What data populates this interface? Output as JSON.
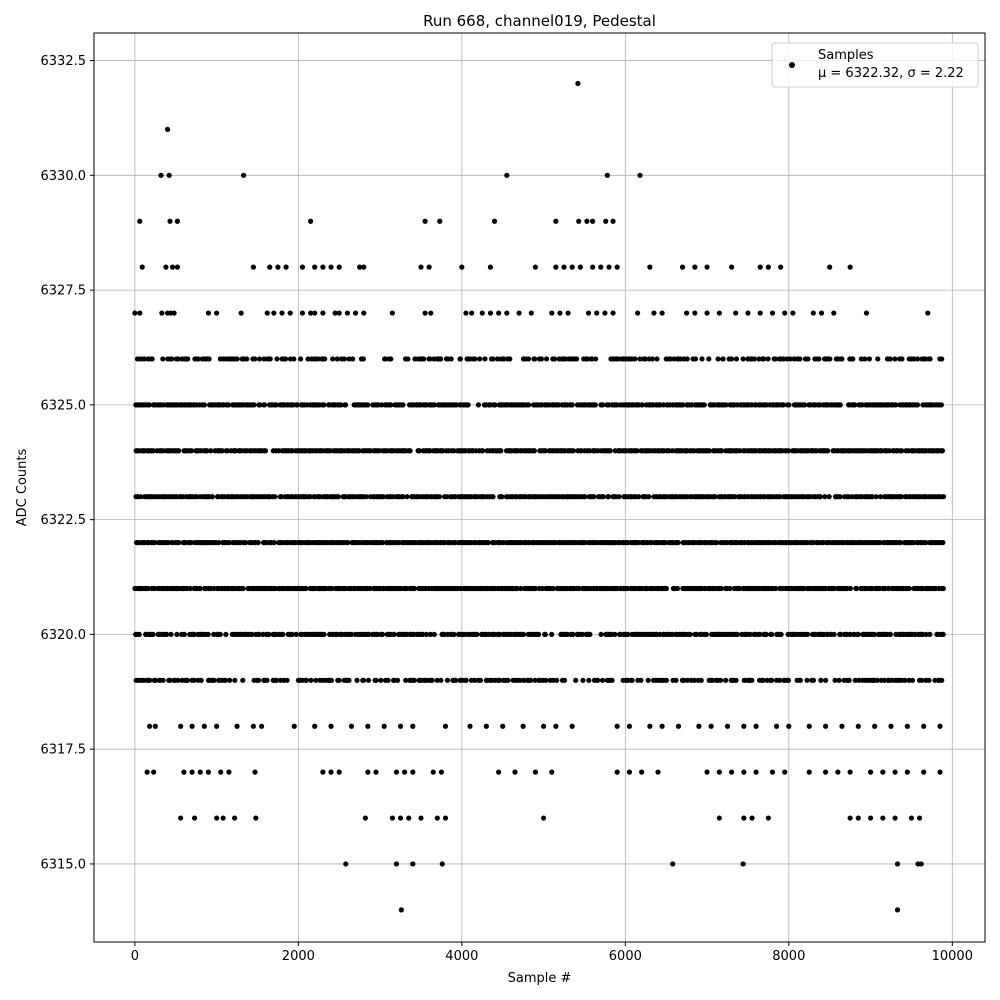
{
  "chart_data": {
    "type": "scatter",
    "title": "Run 668, channel019, Pedestal",
    "xlabel": "Sample #",
    "ylabel": "ADC Counts",
    "xlim": [
      -500,
      10400
    ],
    "ylim": [
      6313.3,
      6333.1
    ],
    "xticks": [
      0,
      2000,
      4000,
      6000,
      8000,
      10000
    ],
    "xtick_labels": [
      "0",
      "2000",
      "4000",
      "6000",
      "8000",
      "10000"
    ],
    "yticks": [
      6315.0,
      6317.5,
      6320.0,
      6322.5,
      6325.0,
      6327.5,
      6330.0,
      6332.5
    ],
    "ytick_labels": [
      "6315.0",
      "6317.5",
      "6320.0",
      "6322.5",
      "6325.0",
      "6327.5",
      "6330.0",
      "6332.5"
    ],
    "grid": true,
    "legend": {
      "position": "top-right",
      "label": "Samples",
      "stats_line": "μ = 6322.32, σ = 2.22"
    },
    "marker_color": "#000000",
    "series": [
      {
        "name": "Samples",
        "band_rows": [
          {
            "y": 6326,
            "density": 0.55,
            "gaps": [
              [
                3180,
                3260
              ],
              [
                4700,
                4740
              ],
              [
                6400,
                6480
              ],
              [
                9100,
                9160
              ]
            ]
          },
          {
            "y": 6325,
            "density": 0.8,
            "gaps": [
              [
                3300,
                3340
              ]
            ]
          },
          {
            "y": 6324,
            "density": 0.85,
            "gaps": [
              [
                3380,
                3460
              ]
            ]
          },
          {
            "y": 6323,
            "density": 0.9,
            "gaps": []
          },
          {
            "y": 6322,
            "density": 0.95,
            "gaps": []
          },
          {
            "y": 6321,
            "density": 0.9,
            "gaps": []
          },
          {
            "y": 6320,
            "density": 0.8,
            "gaps": [
              [
                5100,
                5200
              ],
              [
                5600,
                5700
              ]
            ]
          },
          {
            "y": 6319,
            "density": 0.55,
            "gaps": []
          }
        ],
        "sparse_points": [
          [
            0,
            6327
          ],
          [
            60,
            6327
          ],
          [
            330,
            6327
          ],
          [
            400,
            6327
          ],
          [
            440,
            6327
          ],
          [
            480,
            6327
          ],
          [
            900,
            6327
          ],
          [
            1000,
            6327
          ],
          [
            1300,
            6327
          ],
          [
            1620,
            6327
          ],
          [
            1700,
            6327
          ],
          [
            1800,
            6327
          ],
          [
            1900,
            6327
          ],
          [
            2050,
            6327
          ],
          [
            2150,
            6327
          ],
          [
            2200,
            6327
          ],
          [
            2300,
            6327
          ],
          [
            2450,
            6327
          ],
          [
            2500,
            6327
          ],
          [
            2600,
            6327
          ],
          [
            2700,
            6327
          ],
          [
            2800,
            6327
          ],
          [
            3150,
            6327
          ],
          [
            3550,
            6327
          ],
          [
            3620,
            6327
          ],
          [
            4050,
            6327
          ],
          [
            4120,
            6327
          ],
          [
            4250,
            6327
          ],
          [
            4350,
            6327
          ],
          [
            4450,
            6327
          ],
          [
            4550,
            6327
          ],
          [
            4700,
            6327
          ],
          [
            4850,
            6327
          ],
          [
            5100,
            6327
          ],
          [
            5200,
            6327
          ],
          [
            5300,
            6327
          ],
          [
            5550,
            6327
          ],
          [
            5650,
            6327
          ],
          [
            5750,
            6327
          ],
          [
            5850,
            6327
          ],
          [
            6150,
            6327
          ],
          [
            6350,
            6327
          ],
          [
            6450,
            6327
          ],
          [
            6750,
            6327
          ],
          [
            6850,
            6327
          ],
          [
            7000,
            6327
          ],
          [
            7150,
            6327
          ],
          [
            7350,
            6327
          ],
          [
            7500,
            6327
          ],
          [
            7650,
            6327
          ],
          [
            7800,
            6327
          ],
          [
            7950,
            6327
          ],
          [
            8050,
            6327
          ],
          [
            8300,
            6327
          ],
          [
            8400,
            6327
          ],
          [
            8550,
            6327
          ],
          [
            8950,
            6327
          ],
          [
            9700,
            6327
          ],
          [
            90,
            6328
          ],
          [
            380,
            6328
          ],
          [
            460,
            6328
          ],
          [
            520,
            6328
          ],
          [
            1450,
            6328
          ],
          [
            1650,
            6328
          ],
          [
            1750,
            6328
          ],
          [
            1850,
            6328
          ],
          [
            2050,
            6328
          ],
          [
            2200,
            6328
          ],
          [
            2300,
            6328
          ],
          [
            2400,
            6328
          ],
          [
            2500,
            6328
          ],
          [
            2750,
            6328
          ],
          [
            2800,
            6328
          ],
          [
            3500,
            6328
          ],
          [
            3600,
            6328
          ],
          [
            4000,
            6328
          ],
          [
            4350,
            6328
          ],
          [
            4900,
            6328
          ],
          [
            5150,
            6328
          ],
          [
            5250,
            6328
          ],
          [
            5350,
            6328
          ],
          [
            5450,
            6328
          ],
          [
            5600,
            6328
          ],
          [
            5700,
            6328
          ],
          [
            5800,
            6328
          ],
          [
            5900,
            6328
          ],
          [
            6300,
            6328
          ],
          [
            6700,
            6328
          ],
          [
            6850,
            6328
          ],
          [
            7000,
            6328
          ],
          [
            7300,
            6328
          ],
          [
            7650,
            6328
          ],
          [
            7750,
            6328
          ],
          [
            7900,
            6328
          ],
          [
            8500,
            6328
          ],
          [
            8750,
            6328
          ],
          [
            60,
            6329
          ],
          [
            430,
            6329
          ],
          [
            520,
            6329
          ],
          [
            2150,
            6329
          ],
          [
            3550,
            6329
          ],
          [
            3730,
            6329
          ],
          [
            4400,
            6329
          ],
          [
            5150,
            6329
          ],
          [
            5430,
            6329
          ],
          [
            5530,
            6329
          ],
          [
            5600,
            6329
          ],
          [
            5760,
            6329
          ],
          [
            5850,
            6329
          ],
          [
            320,
            6330
          ],
          [
            420,
            6330
          ],
          [
            1330,
            6330
          ],
          [
            4550,
            6330
          ],
          [
            5780,
            6330
          ],
          [
            6180,
            6330
          ],
          [
            400,
            6331
          ],
          [
            5420,
            6332
          ],
          [
            180,
            6318
          ],
          [
            250,
            6318
          ],
          [
            560,
            6318
          ],
          [
            700,
            6318
          ],
          [
            850,
            6318
          ],
          [
            1000,
            6318
          ],
          [
            1250,
            6318
          ],
          [
            1450,
            6318
          ],
          [
            1550,
            6318
          ],
          [
            1950,
            6318
          ],
          [
            2200,
            6318
          ],
          [
            2400,
            6318
          ],
          [
            2650,
            6318
          ],
          [
            2850,
            6318
          ],
          [
            3050,
            6318
          ],
          [
            3250,
            6318
          ],
          [
            3400,
            6318
          ],
          [
            3800,
            6318
          ],
          [
            4100,
            6318
          ],
          [
            4300,
            6318
          ],
          [
            4500,
            6318
          ],
          [
            4750,
            6318
          ],
          [
            5000,
            6318
          ],
          [
            5150,
            6318
          ],
          [
            5350,
            6318
          ],
          [
            5900,
            6318
          ],
          [
            6050,
            6318
          ],
          [
            6300,
            6318
          ],
          [
            6450,
            6318
          ],
          [
            6650,
            6318
          ],
          [
            6900,
            6318
          ],
          [
            7050,
            6318
          ],
          [
            7250,
            6318
          ],
          [
            7450,
            6318
          ],
          [
            7600,
            6318
          ],
          [
            7850,
            6318
          ],
          [
            8000,
            6318
          ],
          [
            8250,
            6318
          ],
          [
            8450,
            6318
          ],
          [
            8650,
            6318
          ],
          [
            8850,
            6318
          ],
          [
            9050,
            6318
          ],
          [
            9250,
            6318
          ],
          [
            9450,
            6318
          ],
          [
            9650,
            6318
          ],
          [
            9850,
            6318
          ],
          [
            150,
            6317
          ],
          [
            230,
            6317
          ],
          [
            600,
            6317
          ],
          [
            700,
            6317
          ],
          [
            800,
            6317
          ],
          [
            900,
            6317
          ],
          [
            1050,
            6317
          ],
          [
            1150,
            6317
          ],
          [
            1470,
            6317
          ],
          [
            2300,
            6317
          ],
          [
            2400,
            6317
          ],
          [
            2500,
            6317
          ],
          [
            2850,
            6317
          ],
          [
            2950,
            6317
          ],
          [
            3200,
            6317
          ],
          [
            3300,
            6317
          ],
          [
            3400,
            6317
          ],
          [
            3650,
            6317
          ],
          [
            3750,
            6317
          ],
          [
            4450,
            6317
          ],
          [
            4650,
            6317
          ],
          [
            4900,
            6317
          ],
          [
            5100,
            6317
          ],
          [
            5900,
            6317
          ],
          [
            6050,
            6317
          ],
          [
            6200,
            6317
          ],
          [
            6400,
            6317
          ],
          [
            7000,
            6317
          ],
          [
            7150,
            6317
          ],
          [
            7300,
            6317
          ],
          [
            7450,
            6317
          ],
          [
            7600,
            6317
          ],
          [
            7800,
            6317
          ],
          [
            7950,
            6317
          ],
          [
            8250,
            6317
          ],
          [
            8450,
            6317
          ],
          [
            8600,
            6317
          ],
          [
            8750,
            6317
          ],
          [
            9000,
            6317
          ],
          [
            9150,
            6317
          ],
          [
            9300,
            6317
          ],
          [
            9450,
            6317
          ],
          [
            9650,
            6317
          ],
          [
            9850,
            6317
          ],
          [
            560,
            6316
          ],
          [
            730,
            6316
          ],
          [
            1000,
            6316
          ],
          [
            1080,
            6316
          ],
          [
            1220,
            6316
          ],
          [
            1480,
            6316
          ],
          [
            2820,
            6316
          ],
          [
            3150,
            6316
          ],
          [
            3250,
            6316
          ],
          [
            3350,
            6316
          ],
          [
            3500,
            6316
          ],
          [
            3700,
            6316
          ],
          [
            3800,
            6316
          ],
          [
            5000,
            6316
          ],
          [
            7150,
            6316
          ],
          [
            7450,
            6316
          ],
          [
            7550,
            6316
          ],
          [
            7750,
            6316
          ],
          [
            8750,
            6316
          ],
          [
            8850,
            6316
          ],
          [
            9000,
            6316
          ],
          [
            9150,
            6316
          ],
          [
            9300,
            6316
          ],
          [
            9500,
            6316
          ],
          [
            9600,
            6316
          ],
          [
            2580,
            6315
          ],
          [
            3200,
            6315
          ],
          [
            3400,
            6315
          ],
          [
            3760,
            6315
          ],
          [
            6580,
            6315
          ],
          [
            7440,
            6315
          ],
          [
            9330,
            6315
          ],
          [
            9580,
            6315
          ],
          [
            9620,
            6315
          ],
          [
            3260,
            6314
          ],
          [
            9330,
            6314
          ]
        ]
      }
    ]
  }
}
